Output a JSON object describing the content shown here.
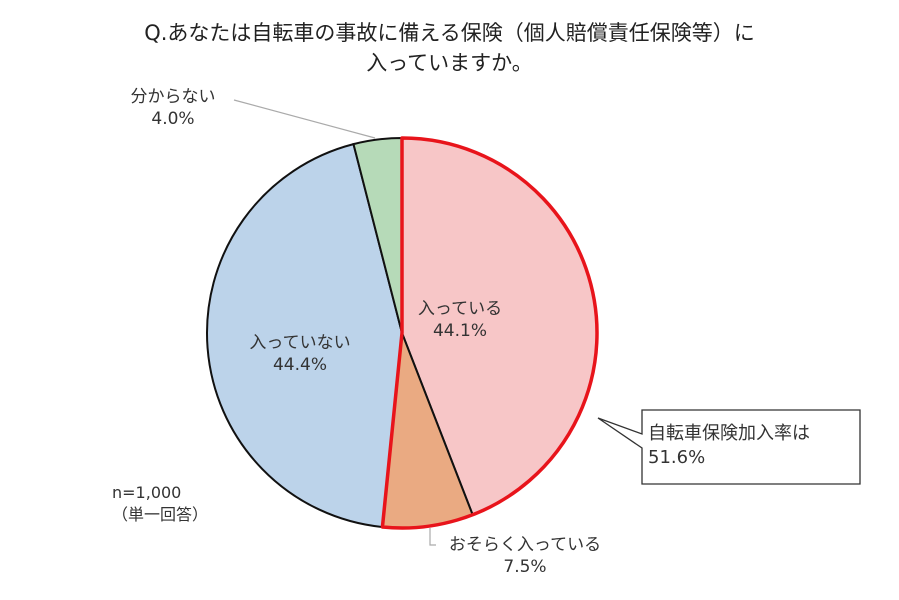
{
  "title": {
    "line1": "Q.あなたは自転車の事故に備える保険（個人賠償責任保険等）に",
    "line2": "入っていますか。"
  },
  "note": {
    "n": "n=1,000",
    "type": "（単一回答）"
  },
  "callout": {
    "line1": "自転車保険加入率は",
    "line2": "51.6%"
  },
  "labels": {
    "in": {
      "name": "入っている",
      "value": "44.1%"
    },
    "probably_in": {
      "name": "おそらく入っている",
      "value": "7.5%"
    },
    "not_in": {
      "name": "入っていない",
      "value": "44.4%"
    },
    "unknown": {
      "name": "分からない",
      "value": "4.0%"
    }
  },
  "colors": {
    "in": "#f7c6c7",
    "probably_in": "#eaaa82",
    "not_in": "#bcd3ea",
    "unknown": "#b6dab8",
    "highlight_border": "#e8141b",
    "border": "#111111"
  },
  "chart_data": {
    "type": "pie",
    "title": "Q.あなたは自転車の事故に備える保険（個人賠償責任保険等）に入っていますか。",
    "categories": [
      "入っている",
      "おそらく入っている",
      "入っていない",
      "分からない"
    ],
    "values": [
      44.1,
      7.5,
      44.4,
      4.0
    ],
    "unit": "%",
    "start_angle": "12 o'clock, clockwise",
    "annotations": [
      "自転車保険加入率は 51.6%",
      "n=1,000 （単一回答）"
    ],
    "highlighted": [
      "入っている",
      "おそらく入っている"
    ]
  }
}
